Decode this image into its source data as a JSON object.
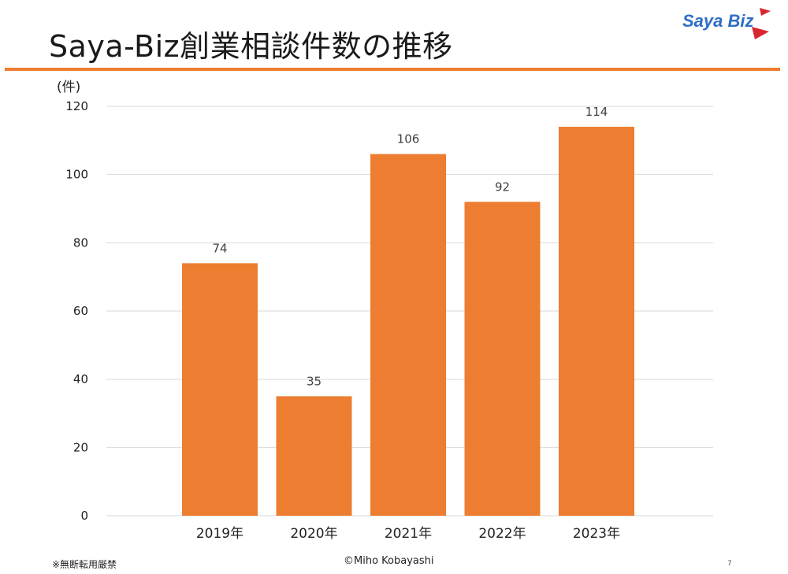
{
  "header": {
    "title": "Saya-Biz創業相談件数の推移",
    "logo_text": "Saya Biz",
    "accent_color": "#ED7D31",
    "logo_color": "#2E6EC6",
    "logo_accent_color": "#D8262E"
  },
  "chart_data": {
    "type": "bar",
    "categories": [
      "2019年",
      "2020年",
      "2021年",
      "2022年",
      "2023年"
    ],
    "values": [
      74,
      35,
      106,
      92,
      114
    ],
    "ylabel": "(件)",
    "ylim": [
      0,
      120
    ],
    "yticks": [
      0,
      20,
      40,
      60,
      80,
      100,
      120
    ],
    "grid": true,
    "bar_color": "#ED7D31",
    "data_labels": true
  },
  "footer": {
    "notice": "※無断転用厳禁",
    "copyright": "©Miho Kobayashi",
    "page_number": "7"
  }
}
